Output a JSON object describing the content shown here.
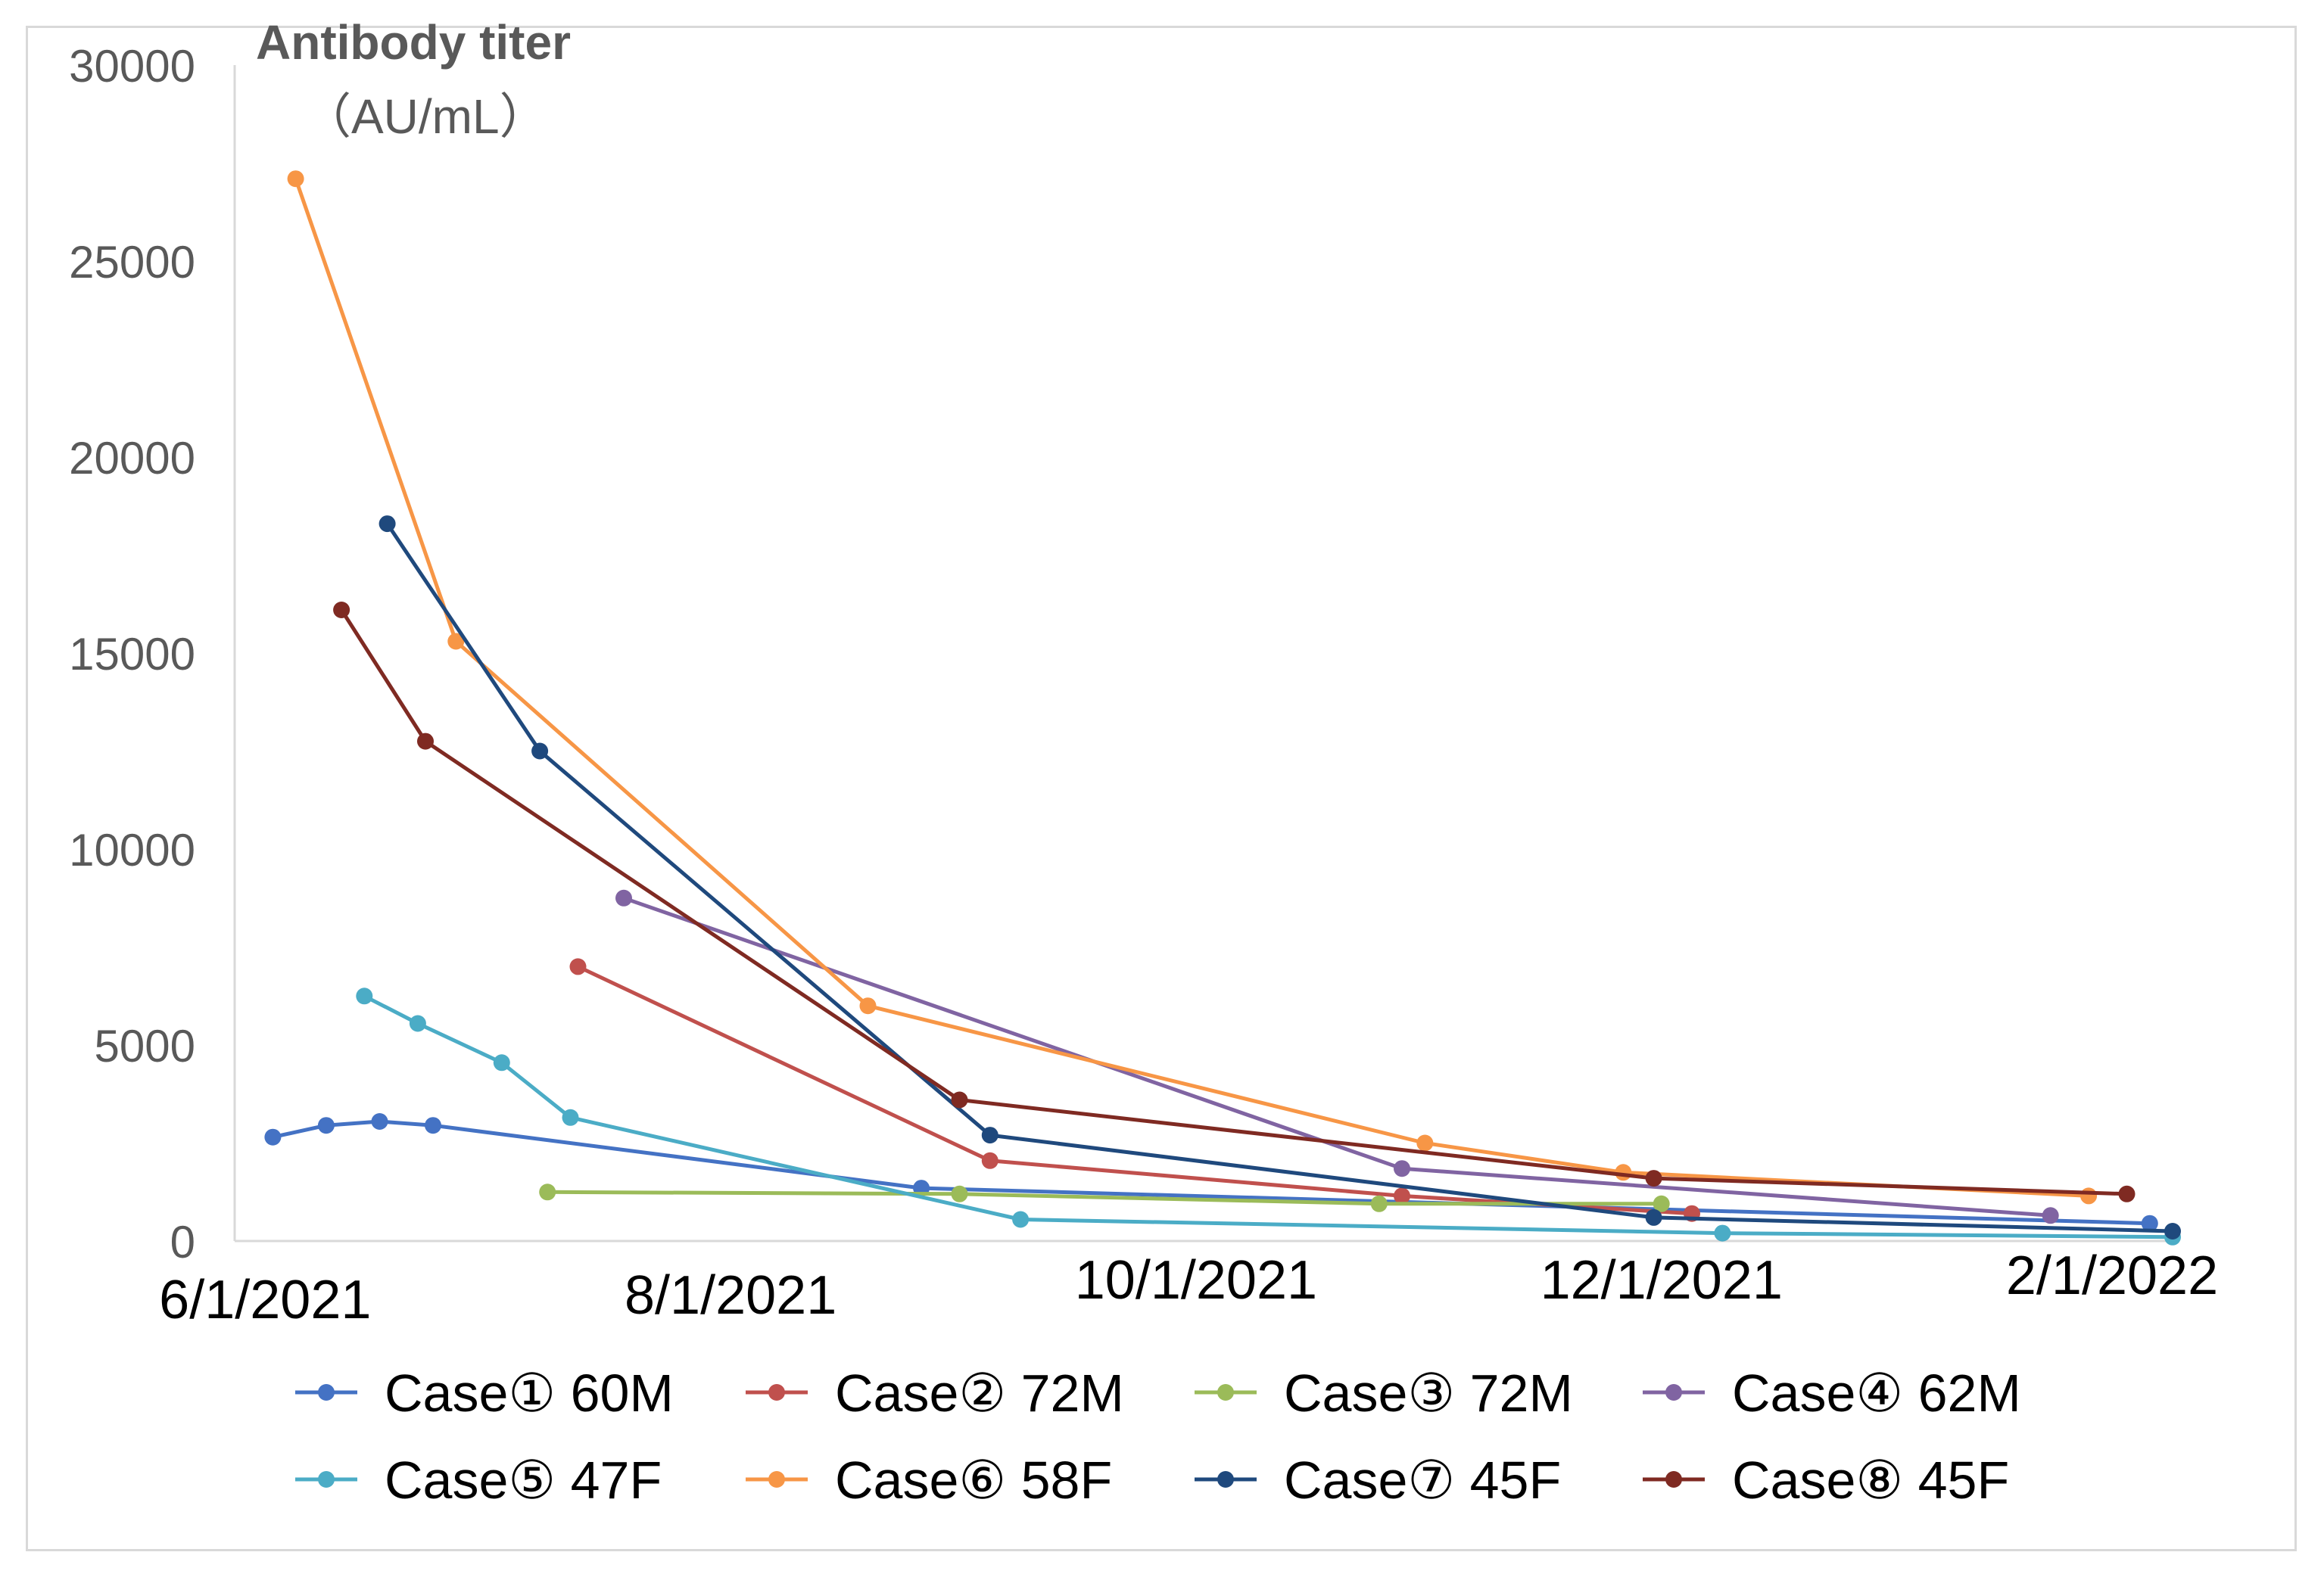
{
  "chart_data": {
    "type": "line",
    "title": "",
    "ylabel": [
      "Antibody titer",
      "（AU/mL）"
    ],
    "xlabel": "",
    "ylim": [
      0,
      30000
    ],
    "yticks": [
      0,
      5000,
      10000,
      15000,
      20000,
      25000,
      30000
    ],
    "ytick_labels": [
      "0",
      "5000",
      "10000",
      "15000",
      "20000",
      "25000",
      "30000"
    ],
    "xlim": [
      "2021-05-28",
      "2022-02-06"
    ],
    "xticks": [
      {
        "date": "2021-06-01",
        "label": "6/1/2021"
      },
      {
        "date": "2021-08-01",
        "label": "8/1/2021"
      },
      {
        "date": "2021-10-01",
        "label": "10/1/2021"
      },
      {
        "date": "2021-12-01",
        "label": "12/1/2021"
      },
      {
        "date": "2022-02-01",
        "label": "2/1/2022"
      }
    ],
    "grid": false,
    "legend_position": "bottom",
    "series": [
      {
        "name": "Case① 60M",
        "color": "#4472c4",
        "points": [
          [
            "2021-06-02",
            2650
          ],
          [
            "2021-06-09",
            2950
          ],
          [
            "2021-06-16",
            3050
          ],
          [
            "2021-06-23",
            2950
          ],
          [
            "2021-08-26",
            1350
          ],
          [
            "2022-02-03",
            450
          ]
        ]
      },
      {
        "name": "Case② 72M",
        "color": "#c0504d",
        "points": [
          [
            "2021-07-12",
            7000
          ],
          [
            "2021-09-04",
            2050
          ],
          [
            "2021-10-28",
            1150
          ],
          [
            "2021-12-05",
            700
          ]
        ]
      },
      {
        "name": "Case③ 72M",
        "color": "#9bbb59",
        "points": [
          [
            "2021-07-08",
            1250
          ],
          [
            "2021-08-31",
            1200
          ],
          [
            "2021-10-25",
            950
          ],
          [
            "2021-12-01",
            950
          ]
        ]
      },
      {
        "name": "Case④ 62M",
        "color": "#8064a2",
        "points": [
          [
            "2021-07-18",
            8750
          ],
          [
            "2021-10-28",
            1850
          ],
          [
            "2022-01-21",
            650
          ]
        ]
      },
      {
        "name": "Case⑤ 47F",
        "color": "#4bacc6",
        "points": [
          [
            "2021-06-14",
            6250
          ],
          [
            "2021-06-21",
            5550
          ],
          [
            "2021-07-02",
            4550
          ],
          [
            "2021-07-11",
            3150
          ],
          [
            "2021-09-08",
            550
          ],
          [
            "2021-12-09",
            200
          ],
          [
            "2022-02-06",
            100
          ]
        ]
      },
      {
        "name": "Case⑥ 58F",
        "color": "#f79646",
        "points": [
          [
            "2021-06-05",
            27100
          ],
          [
            "2021-06-26",
            15300
          ],
          [
            "2021-08-19",
            6000
          ],
          [
            "2021-10-31",
            2500
          ],
          [
            "2021-11-26",
            1750
          ],
          [
            "2022-01-26",
            1150
          ]
        ]
      },
      {
        "name": "Case⑦ 45F",
        "color": "#1f497d",
        "points": [
          [
            "2021-06-17",
            18300
          ],
          [
            "2021-07-07",
            12500
          ],
          [
            "2021-09-04",
            2700
          ],
          [
            "2021-11-30",
            600
          ],
          [
            "2022-02-06",
            250
          ]
        ]
      },
      {
        "name": "Case⑧ 45F",
        "color": "#7f2a22",
        "points": [
          [
            "2021-06-11",
            16100
          ],
          [
            "2021-06-22",
            12750
          ],
          [
            "2021-08-31",
            3600
          ],
          [
            "2021-11-30",
            1600
          ],
          [
            "2022-01-31",
            1200
          ]
        ]
      }
    ]
  }
}
